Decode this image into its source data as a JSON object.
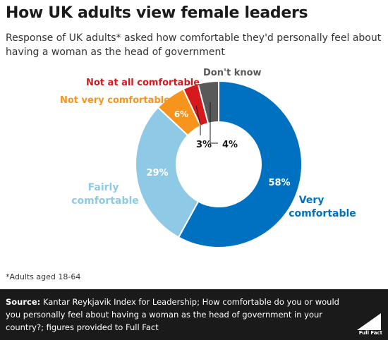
{
  "colors": {
    "very_comfortable": "#0070c0",
    "fairly_comfortable": "#8ecae6",
    "not_very_comfortable": "#f7941d",
    "not_at_all_comfortable": "#d7191c",
    "dont_know": "#595959"
  },
  "chart_data": {
    "type": "pie",
    "title": "How UK adults view female leaders",
    "subtitle": "Response of UK adults* asked how comfortable they'd personally feel about having a woman as the head of government",
    "donut": true,
    "slices": [
      {
        "label": "Very comfortable",
        "value": 58,
        "display": "58%",
        "color": "#0070c0"
      },
      {
        "label": "Fairly comfortable",
        "value": 29,
        "display": "29%",
        "color": "#8ecae6"
      },
      {
        "label": "Not very comfortable",
        "value": 6,
        "display": "6%",
        "color": "#f7941d"
      },
      {
        "label": "Not at all comfortable",
        "value": 3,
        "display": "3%",
        "color": "#d7191c"
      },
      {
        "label": "Don't know",
        "value": 4,
        "display": "4%",
        "color": "#595959"
      }
    ],
    "note": "*Adults aged 18-64"
  },
  "footer": {
    "source_label": "Source:",
    "source_text": "Kantar Reykjavik Index for Leadership; How comfortable do you or would you personally feel about having a woman as the head of government in your country?; figures provided to Full Fact",
    "logo_text": "Full Fact"
  }
}
